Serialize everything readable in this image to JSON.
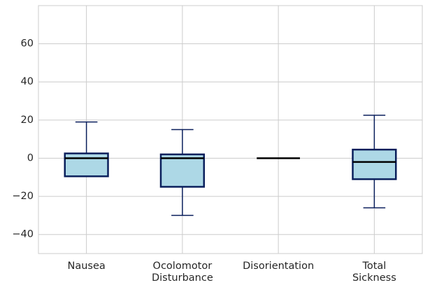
{
  "chart_data": {
    "type": "box",
    "categories": [
      "Nausea",
      "Ocolomotor\nDisturbance",
      "Disorientation",
      "Total\nSickness"
    ],
    "whislo": [
      -9.5,
      -30,
      0,
      -26
    ],
    "q1": [
      -9.5,
      -15,
      0,
      -11
    ],
    "med": [
      0,
      0,
      0,
      -2
    ],
    "q3": [
      2.5,
      2,
      0,
      4.5
    ],
    "whishi": [
      19,
      15,
      0,
      22.5
    ],
    "color": "#add8e6",
    "edge_color": "#0a1f5c",
    "median_color": "#000000",
    "ylim": [
      -50,
      80
    ],
    "yticks": [
      {
        "value": -40,
        "label": "−40"
      },
      {
        "value": -20,
        "label": "−20"
      },
      0,
      20,
      40,
      60
    ],
    "grid": true
  }
}
